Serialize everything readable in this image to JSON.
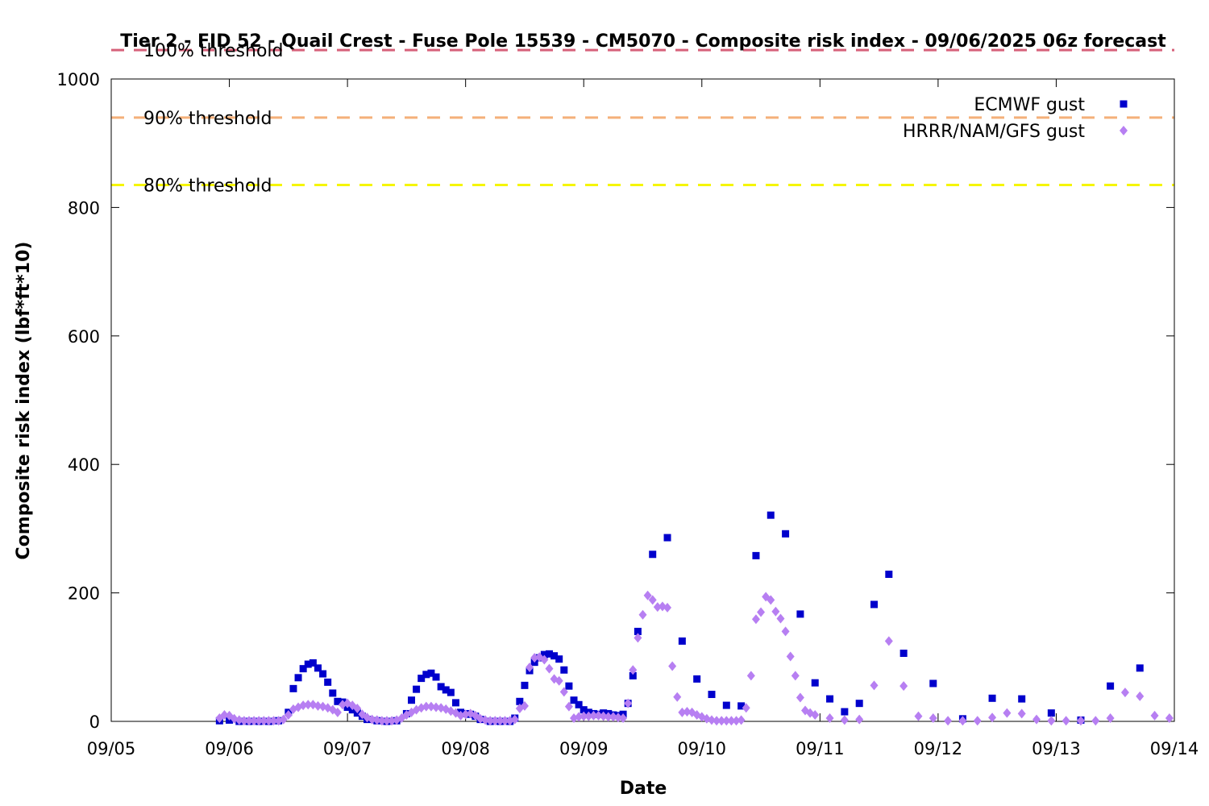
{
  "chart_data": {
    "type": "scatter",
    "title": "Tier 2 - FID 52 - Quail Crest - Fuse Pole 15539 - CM5070 - Composite risk index - 09/06/2025 06z forecast",
    "xlabel": "Date",
    "ylabel": "Composite risk index (lbf*ft*10)",
    "x_tick_labels": [
      "09/05",
      "09/06",
      "09/07",
      "09/08",
      "09/09",
      "09/10",
      "09/11",
      "09/12",
      "09/13",
      "09/14"
    ],
    "x_tick_dates": [
      "2025-09-05",
      "2025-09-06",
      "2025-09-07",
      "2025-09-08",
      "2025-09-09",
      "2025-09-10",
      "2025-09-11",
      "2025-09-12",
      "2025-09-13",
      "2025-09-14"
    ],
    "xlim": [
      "2025-09-05 00:00",
      "2025-09-14 00:00"
    ],
    "ylim": [
      0,
      1000
    ],
    "y_ticks": [
      0,
      200,
      400,
      600,
      800,
      1000
    ],
    "grid": false,
    "legend_position": "top-right",
    "thresholds": [
      {
        "label": "100% threshold",
        "value": 1045,
        "color": "#d6617a"
      },
      {
        "label": "90% threshold",
        "value": 940,
        "color": "#f4b07a"
      },
      {
        "label": "80% threshold",
        "value": 835,
        "color": "#f5f500"
      }
    ],
    "series": [
      {
        "name": "ECMWF gust",
        "marker": "square",
        "color": "#0000cc",
        "points": [
          [
            "2025-09-05 22:00",
            1
          ],
          [
            "2025-09-06 00:00",
            2
          ],
          [
            "2025-09-06 02:00",
            0
          ],
          [
            "2025-09-06 04:00",
            0
          ],
          [
            "2025-09-06 06:00",
            0
          ],
          [
            "2025-09-06 08:00",
            0
          ],
          [
            "2025-09-06 10:00",
            1
          ],
          [
            "2025-09-06 12:00",
            14
          ],
          [
            "2025-09-06 13:00",
            51
          ],
          [
            "2025-09-06 14:00",
            68
          ],
          [
            "2025-09-06 15:00",
            82
          ],
          [
            "2025-09-06 16:00",
            89
          ],
          [
            "2025-09-06 17:00",
            91
          ],
          [
            "2025-09-06 18:00",
            83
          ],
          [
            "2025-09-06 19:00",
            74
          ],
          [
            "2025-09-06 20:00",
            61
          ],
          [
            "2025-09-06 21:00",
            44
          ],
          [
            "2025-09-06 22:00",
            31
          ],
          [
            "2025-09-06 23:00",
            30
          ],
          [
            "2025-09-07 00:00",
            22
          ],
          [
            "2025-09-07 01:00",
            18
          ],
          [
            "2025-09-07 02:00",
            13
          ],
          [
            "2025-09-07 03:00",
            8
          ],
          [
            "2025-09-07 04:00",
            3
          ],
          [
            "2025-09-07 06:00",
            1
          ],
          [
            "2025-09-07 08:00",
            0
          ],
          [
            "2025-09-07 10:00",
            1
          ],
          [
            "2025-09-07 12:00",
            12
          ],
          [
            "2025-09-07 13:00",
            33
          ],
          [
            "2025-09-07 14:00",
            50
          ],
          [
            "2025-09-07 15:00",
            67
          ],
          [
            "2025-09-07 16:00",
            73
          ],
          [
            "2025-09-07 17:00",
            75
          ],
          [
            "2025-09-07 18:00",
            69
          ],
          [
            "2025-09-07 19:00",
            54
          ],
          [
            "2025-09-07 20:00",
            49
          ],
          [
            "2025-09-07 21:00",
            45
          ],
          [
            "2025-09-07 22:00",
            29
          ],
          [
            "2025-09-07 23:00",
            14
          ],
          [
            "2025-09-08 00:00",
            12
          ],
          [
            "2025-09-08 01:00",
            11
          ],
          [
            "2025-09-08 02:00",
            8
          ],
          [
            "2025-09-08 03:00",
            3
          ],
          [
            "2025-09-08 05:00",
            0
          ],
          [
            "2025-09-08 07:00",
            0
          ],
          [
            "2025-09-08 09:00",
            0
          ],
          [
            "2025-09-08 10:00",
            5
          ],
          [
            "2025-09-08 11:00",
            31
          ],
          [
            "2025-09-08 12:00",
            56
          ],
          [
            "2025-09-08 13:00",
            79
          ],
          [
            "2025-09-08 14:00",
            92
          ],
          [
            "2025-09-08 15:00",
            99
          ],
          [
            "2025-09-08 16:00",
            104
          ],
          [
            "2025-09-08 17:00",
            105
          ],
          [
            "2025-09-08 18:00",
            102
          ],
          [
            "2025-09-08 19:00",
            97
          ],
          [
            "2025-09-08 20:00",
            80
          ],
          [
            "2025-09-08 21:00",
            55
          ],
          [
            "2025-09-08 22:00",
            33
          ],
          [
            "2025-09-08 23:00",
            26
          ],
          [
            "2025-09-09 00:00",
            18
          ],
          [
            "2025-09-09 01:00",
            14
          ],
          [
            "2025-09-09 02:00",
            12
          ],
          [
            "2025-09-09 03:00",
            11
          ],
          [
            "2025-09-09 04:00",
            13
          ],
          [
            "2025-09-09 05:00",
            12
          ],
          [
            "2025-09-09 06:00",
            10
          ],
          [
            "2025-09-09 07:00",
            9
          ],
          [
            "2025-09-09 08:00",
            11
          ],
          [
            "2025-09-09 09:00",
            28
          ],
          [
            "2025-09-09 10:00",
            71
          ],
          [
            "2025-09-09 11:00",
            140
          ],
          [
            "2025-09-09 14:00",
            260
          ],
          [
            "2025-09-09 17:00",
            286
          ],
          [
            "2025-09-09 20:00",
            125
          ],
          [
            "2025-09-09 23:00",
            66
          ],
          [
            "2025-09-10 02:00",
            42
          ],
          [
            "2025-09-10 05:00",
            25
          ],
          [
            "2025-09-10 08:00",
            24
          ],
          [
            "2025-09-10 11:00",
            258
          ],
          [
            "2025-09-10 14:00",
            321
          ],
          [
            "2025-09-10 17:00",
            292
          ],
          [
            "2025-09-10 20:00",
            167
          ],
          [
            "2025-09-10 23:00",
            60
          ],
          [
            "2025-09-11 02:00",
            35
          ],
          [
            "2025-09-11 05:00",
            15
          ],
          [
            "2025-09-11 08:00",
            28
          ],
          [
            "2025-09-11 11:00",
            182
          ],
          [
            "2025-09-11 14:00",
            229
          ],
          [
            "2025-09-11 17:00",
            106
          ],
          [
            "2025-09-11 23:00",
            59
          ],
          [
            "2025-09-12 05:00",
            4
          ],
          [
            "2025-09-12 11:00",
            36
          ],
          [
            "2025-09-12 17:00",
            35
          ],
          [
            "2025-09-12 23:00",
            13
          ],
          [
            "2025-09-13 05:00",
            2
          ],
          [
            "2025-09-13 11:00",
            55
          ],
          [
            "2025-09-13 17:00",
            83
          ]
        ]
      },
      {
        "name": "HRRR/NAM/GFS gust",
        "marker": "diamond",
        "color": "#b77ff2",
        "points": [
          [
            "2025-09-05 22:00",
            5
          ],
          [
            "2025-09-05 23:00",
            10
          ],
          [
            "2025-09-06 00:00",
            9
          ],
          [
            "2025-09-06 01:00",
            4
          ],
          [
            "2025-09-06 02:00",
            2
          ],
          [
            "2025-09-06 03:00",
            1
          ],
          [
            "2025-09-06 04:00",
            1
          ],
          [
            "2025-09-06 05:00",
            1
          ],
          [
            "2025-09-06 06:00",
            1
          ],
          [
            "2025-09-06 07:00",
            1
          ],
          [
            "2025-09-06 08:00",
            1
          ],
          [
            "2025-09-06 09:00",
            1
          ],
          [
            "2025-09-06 10:00",
            1
          ],
          [
            "2025-09-06 11:00",
            3
          ],
          [
            "2025-09-06 12:00",
            10
          ],
          [
            "2025-09-06 13:00",
            19
          ],
          [
            "2025-09-06 14:00",
            22
          ],
          [
            "2025-09-06 15:00",
            25
          ],
          [
            "2025-09-06 16:00",
            26
          ],
          [
            "2025-09-06 17:00",
            26
          ],
          [
            "2025-09-06 18:00",
            24
          ],
          [
            "2025-09-06 19:00",
            23
          ],
          [
            "2025-09-06 20:00",
            21
          ],
          [
            "2025-09-06 21:00",
            18
          ],
          [
            "2025-09-06 22:00",
            14
          ],
          [
            "2025-09-06 23:00",
            26
          ],
          [
            "2025-09-07 00:00",
            28
          ],
          [
            "2025-09-07 01:00",
            25
          ],
          [
            "2025-09-07 02:00",
            20
          ],
          [
            "2025-09-07 03:00",
            11
          ],
          [
            "2025-09-07 04:00",
            6
          ],
          [
            "2025-09-07 05:00",
            3
          ],
          [
            "2025-09-07 06:00",
            2
          ],
          [
            "2025-09-07 07:00",
            1
          ],
          [
            "2025-09-07 08:00",
            1
          ],
          [
            "2025-09-07 09:00",
            1
          ],
          [
            "2025-09-07 10:00",
            2
          ],
          [
            "2025-09-07 11:00",
            5
          ],
          [
            "2025-09-07 12:00",
            10
          ],
          [
            "2025-09-07 13:00",
            14
          ],
          [
            "2025-09-07 14:00",
            18
          ],
          [
            "2025-09-07 15:00",
            21
          ],
          [
            "2025-09-07 16:00",
            23
          ],
          [
            "2025-09-07 17:00",
            23
          ],
          [
            "2025-09-07 18:00",
            22
          ],
          [
            "2025-09-07 19:00",
            21
          ],
          [
            "2025-09-07 20:00",
            19
          ],
          [
            "2025-09-07 21:00",
            16
          ],
          [
            "2025-09-07 22:00",
            13
          ],
          [
            "2025-09-07 23:00",
            9
          ],
          [
            "2025-09-08 00:00",
            11
          ],
          [
            "2025-09-08 01:00",
            12
          ],
          [
            "2025-09-08 02:00",
            9
          ],
          [
            "2025-09-08 03:00",
            4
          ],
          [
            "2025-09-08 04:00",
            2
          ],
          [
            "2025-09-08 05:00",
            1
          ],
          [
            "2025-09-08 06:00",
            1
          ],
          [
            "2025-09-08 07:00",
            1
          ],
          [
            "2025-09-08 08:00",
            1
          ],
          [
            "2025-09-08 09:00",
            1
          ],
          [
            "2025-09-08 10:00",
            3
          ],
          [
            "2025-09-08 11:00",
            20
          ],
          [
            "2025-09-08 12:00",
            24
          ],
          [
            "2025-09-08 13:00",
            84
          ],
          [
            "2025-09-08 14:00",
            99
          ],
          [
            "2025-09-08 15:00",
            100
          ],
          [
            "2025-09-08 16:00",
            96
          ],
          [
            "2025-09-08 17:00",
            82
          ],
          [
            "2025-09-08 18:00",
            66
          ],
          [
            "2025-09-08 19:00",
            63
          ],
          [
            "2025-09-08 20:00",
            46
          ],
          [
            "2025-09-08 21:00",
            23
          ],
          [
            "2025-09-08 22:00",
            5
          ],
          [
            "2025-09-08 23:00",
            7
          ],
          [
            "2025-09-09 00:00",
            8
          ],
          [
            "2025-09-09 01:00",
            8
          ],
          [
            "2025-09-09 02:00",
            9
          ],
          [
            "2025-09-09 03:00",
            9
          ],
          [
            "2025-09-09 04:00",
            8
          ],
          [
            "2025-09-09 05:00",
            7
          ],
          [
            "2025-09-09 06:00",
            7
          ],
          [
            "2025-09-09 07:00",
            6
          ],
          [
            "2025-09-09 08:00",
            5
          ],
          [
            "2025-09-09 09:00",
            28
          ],
          [
            "2025-09-09 10:00",
            80
          ],
          [
            "2025-09-09 11:00",
            130
          ],
          [
            "2025-09-09 12:00",
            166
          ],
          [
            "2025-09-09 13:00",
            196
          ],
          [
            "2025-09-09 14:00",
            189
          ],
          [
            "2025-09-09 15:00",
            178
          ],
          [
            "2025-09-09 16:00",
            179
          ],
          [
            "2025-09-09 17:00",
            177
          ],
          [
            "2025-09-09 18:00",
            86
          ],
          [
            "2025-09-09 19:00",
            38
          ],
          [
            "2025-09-09 20:00",
            14
          ],
          [
            "2025-09-09 21:00",
            15
          ],
          [
            "2025-09-09 22:00",
            14
          ],
          [
            "2025-09-09 23:00",
            10
          ],
          [
            "2025-09-10 00:00",
            7
          ],
          [
            "2025-09-10 01:00",
            4
          ],
          [
            "2025-09-10 02:00",
            2
          ],
          [
            "2025-09-10 03:00",
            1
          ],
          [
            "2025-09-10 04:00",
            1
          ],
          [
            "2025-09-10 05:00",
            1
          ],
          [
            "2025-09-10 06:00",
            1
          ],
          [
            "2025-09-10 07:00",
            1
          ],
          [
            "2025-09-10 08:00",
            2
          ],
          [
            "2025-09-10 09:00",
            21
          ],
          [
            "2025-09-10 10:00",
            71
          ],
          [
            "2025-09-10 11:00",
            159
          ],
          [
            "2025-09-10 12:00",
            170
          ],
          [
            "2025-09-10 13:00",
            194
          ],
          [
            "2025-09-10 14:00",
            189
          ],
          [
            "2025-09-10 15:00",
            171
          ],
          [
            "2025-09-10 16:00",
            160
          ],
          [
            "2025-09-10 17:00",
            140
          ],
          [
            "2025-09-10 18:00",
            101
          ],
          [
            "2025-09-10 19:00",
            71
          ],
          [
            "2025-09-10 20:00",
            37
          ],
          [
            "2025-09-10 21:00",
            17
          ],
          [
            "2025-09-10 22:00",
            13
          ],
          [
            "2025-09-10 23:00",
            10
          ],
          [
            "2025-09-11 02:00",
            5
          ],
          [
            "2025-09-11 05:00",
            2
          ],
          [
            "2025-09-11 08:00",
            3
          ],
          [
            "2025-09-11 11:00",
            56
          ],
          [
            "2025-09-11 14:00",
            125
          ],
          [
            "2025-09-11 17:00",
            55
          ],
          [
            "2025-09-11 20:00",
            8
          ],
          [
            "2025-09-11 23:00",
            5
          ],
          [
            "2025-09-12 02:00",
            1
          ],
          [
            "2025-09-12 05:00",
            1
          ],
          [
            "2025-09-12 08:00",
            1
          ],
          [
            "2025-09-12 11:00",
            6
          ],
          [
            "2025-09-12 14:00",
            13
          ],
          [
            "2025-09-12 17:00",
            12
          ],
          [
            "2025-09-12 20:00",
            3
          ],
          [
            "2025-09-12 23:00",
            1
          ],
          [
            "2025-09-13 02:00",
            1
          ],
          [
            "2025-09-13 05:00",
            1
          ],
          [
            "2025-09-13 08:00",
            1
          ],
          [
            "2025-09-13 11:00",
            5
          ],
          [
            "2025-09-13 14:00",
            45
          ],
          [
            "2025-09-13 17:00",
            39
          ],
          [
            "2025-09-13 20:00",
            9
          ],
          [
            "2025-09-13 23:00",
            5
          ]
        ]
      }
    ]
  }
}
